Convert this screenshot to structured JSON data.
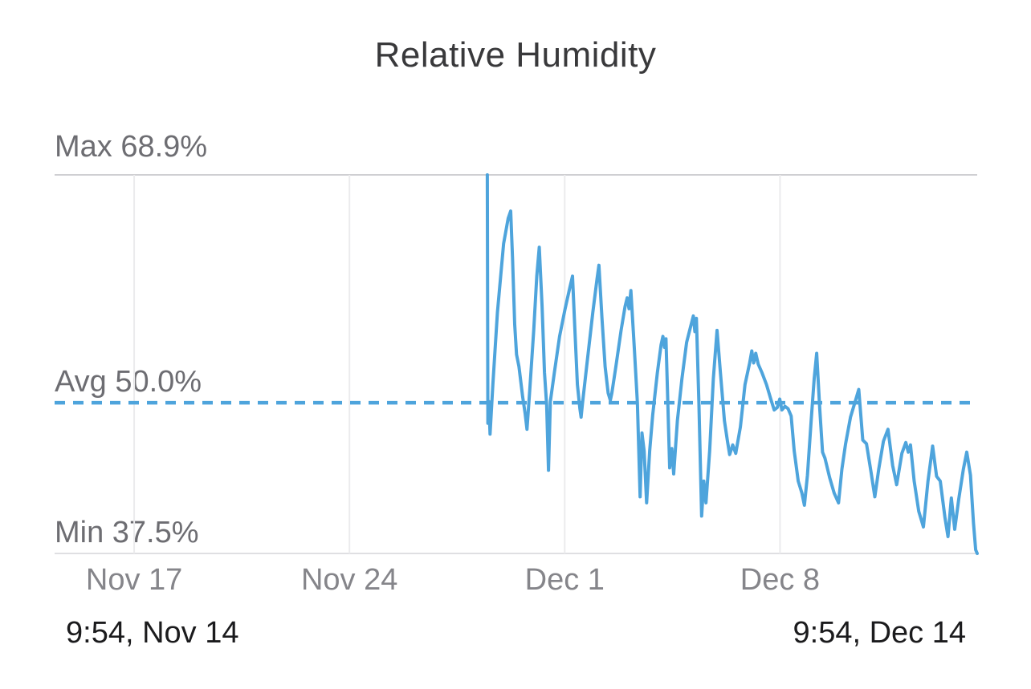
{
  "title": "Relative Humidity",
  "annotations": {
    "max_label": "Max 68.9%",
    "avg_label": "Avg 50.0%",
    "min_label": "Min 37.5%"
  },
  "footer": {
    "start": "9:54,  Nov 14",
    "end": "9:54,  Dec 14"
  },
  "colors": {
    "line": "#4ea4dc",
    "avg_dashed_line": "#4ea4dc",
    "grid_strong": "#cfcfd2",
    "grid_axis": "#dfdfe2",
    "grid_light": "#ebebed",
    "stat_label_gray": "#6d6d72",
    "tick_gray": "#85858a",
    "timestamp_dark": "#1b1b1d",
    "title_dark": "#39393b",
    "background": "#ffffff"
  },
  "chart_data": {
    "type": "line",
    "title": "Relative Humidity",
    "series_name": "Relative humidity (%)",
    "legend": "none",
    "grid": "weekly vertical gridlines; horizontal lines at max and min",
    "y_stats": {
      "max": 68.9,
      "avg": 50.0,
      "min": 37.5
    },
    "ylim": [
      37.5,
      68.9
    ],
    "x_unit": "days since Nov 14 09:54",
    "xlim": [
      0,
      30
    ],
    "x_start_label": "9:54,  Nov 14",
    "x_end_label": "9:54,  Dec 14",
    "x_gridlines": [
      {
        "day": 2.588,
        "label": "Nov 17"
      },
      {
        "day": 9.588,
        "label": "Nov 24"
      },
      {
        "day": 16.588,
        "label": "Dec 1"
      },
      {
        "day": 23.588,
        "label": "Dec 8"
      }
    ],
    "data_start_day": 14.07,
    "points": [
      [
        14.07,
        68.9
      ],
      [
        14.09,
        48.3
      ],
      [
        14.12,
        50.1
      ],
      [
        14.16,
        47.4
      ],
      [
        14.25,
        51.5
      ],
      [
        14.4,
        57.5
      ],
      [
        14.6,
        63.2
      ],
      [
        14.75,
        65.3
      ],
      [
        14.83,
        65.9
      ],
      [
        14.89,
        62.0
      ],
      [
        14.96,
        56.5
      ],
      [
        15.02,
        54.0
      ],
      [
        15.1,
        53.0
      ],
      [
        15.22,
        50.5
      ],
      [
        15.3,
        49.1
      ],
      [
        15.36,
        47.8
      ],
      [
        15.45,
        51.0
      ],
      [
        15.58,
        56.0
      ],
      [
        15.68,
        60.5
      ],
      [
        15.76,
        62.9
      ],
      [
        15.85,
        58.0
      ],
      [
        15.93,
        52.5
      ],
      [
        16.0,
        49.8
      ],
      [
        16.06,
        44.4
      ],
      [
        16.12,
        50.1
      ],
      [
        16.25,
        52.5
      ],
      [
        16.42,
        55.5
      ],
      [
        16.6,
        57.8
      ],
      [
        16.75,
        59.5
      ],
      [
        16.84,
        60.5
      ],
      [
        16.92,
        56.0
      ],
      [
        17.0,
        51.5
      ],
      [
        17.08,
        49.5
      ],
      [
        17.12,
        48.8
      ],
      [
        17.16,
        49.8
      ],
      [
        17.3,
        53.0
      ],
      [
        17.5,
        57.5
      ],
      [
        17.64,
        60.3
      ],
      [
        17.7,
        61.4
      ],
      [
        17.8,
        57.0
      ],
      [
        17.9,
        53.0
      ],
      [
        18.0,
        50.8
      ],
      [
        18.07,
        50.2
      ],
      [
        18.12,
        50.8
      ],
      [
        18.25,
        53.0
      ],
      [
        18.42,
        56.0
      ],
      [
        18.55,
        58.0
      ],
      [
        18.62,
        58.7
      ],
      [
        18.68,
        57.8
      ],
      [
        18.74,
        59.3
      ],
      [
        18.85,
        54.5
      ],
      [
        18.95,
        50.0
      ],
      [
        19.04,
        42.2
      ],
      [
        19.1,
        47.5
      ],
      [
        19.17,
        46.0
      ],
      [
        19.25,
        41.7
      ],
      [
        19.35,
        46.0
      ],
      [
        19.45,
        49.0
      ],
      [
        19.6,
        52.5
      ],
      [
        19.72,
        54.8
      ],
      [
        19.78,
        55.5
      ],
      [
        19.83,
        54.6
      ],
      [
        19.88,
        55.3
      ],
      [
        19.94,
        50.0
      ],
      [
        20.0,
        44.6
      ],
      [
        20.07,
        46.2
      ],
      [
        20.13,
        44.1
      ],
      [
        20.25,
        48.5
      ],
      [
        20.4,
        52.0
      ],
      [
        20.55,
        55.0
      ],
      [
        20.7,
        56.5
      ],
      [
        20.77,
        57.2
      ],
      [
        20.82,
        55.9
      ],
      [
        20.87,
        57.0
      ],
      [
        20.95,
        50.0
      ],
      [
        21.04,
        40.6
      ],
      [
        21.11,
        43.5
      ],
      [
        21.18,
        41.7
      ],
      [
        21.3,
        46.0
      ],
      [
        21.42,
        52.0
      ],
      [
        21.54,
        56.0
      ],
      [
        21.65,
        52.5
      ],
      [
        21.78,
        48.5
      ],
      [
        21.88,
        46.8
      ],
      [
        21.95,
        45.7
      ],
      [
        22.05,
        46.5
      ],
      [
        22.15,
        45.8
      ],
      [
        22.3,
        48.0
      ],
      [
        22.45,
        51.5
      ],
      [
        22.6,
        53.3
      ],
      [
        22.67,
        54.3
      ],
      [
        22.73,
        53.3
      ],
      [
        22.8,
        54.1
      ],
      [
        22.88,
        53.2
      ],
      [
        23.0,
        52.5
      ],
      [
        23.15,
        51.5
      ],
      [
        23.3,
        50.2
      ],
      [
        23.4,
        49.4
      ],
      [
        23.5,
        49.6
      ],
      [
        23.58,
        50.3
      ],
      [
        23.65,
        49.4
      ],
      [
        23.75,
        49.7
      ],
      [
        23.85,
        49.5
      ],
      [
        23.95,
        48.9
      ],
      [
        24.05,
        46.0
      ],
      [
        24.18,
        43.5
      ],
      [
        24.3,
        42.5
      ],
      [
        24.38,
        41.5
      ],
      [
        24.48,
        44.0
      ],
      [
        24.6,
        48.5
      ],
      [
        24.7,
        52.0
      ],
      [
        24.78,
        54.1
      ],
      [
        24.88,
        49.5
      ],
      [
        24.97,
        45.9
      ],
      [
        25.05,
        45.4
      ],
      [
        25.2,
        43.8
      ],
      [
        25.35,
        42.5
      ],
      [
        25.49,
        41.7
      ],
      [
        25.6,
        44.5
      ],
      [
        25.72,
        46.6
      ],
      [
        25.88,
        48.8
      ],
      [
        26.02,
        50.0
      ],
      [
        26.15,
        51.1
      ],
      [
        26.28,
        46.9
      ],
      [
        26.4,
        46.6
      ],
      [
        26.55,
        44.2
      ],
      [
        26.67,
        42.2
      ],
      [
        26.8,
        44.5
      ],
      [
        26.95,
        46.8
      ],
      [
        27.1,
        47.8
      ],
      [
        27.25,
        44.8
      ],
      [
        27.38,
        43.2
      ],
      [
        27.55,
        45.8
      ],
      [
        27.68,
        46.7
      ],
      [
        27.76,
        45.9
      ],
      [
        27.83,
        46.5
      ],
      [
        27.95,
        43.5
      ],
      [
        28.1,
        41.0
      ],
      [
        28.25,
        39.7
      ],
      [
        28.4,
        43.5
      ],
      [
        28.55,
        46.4
      ],
      [
        28.68,
        43.9
      ],
      [
        28.8,
        43.5
      ],
      [
        28.95,
        40.5
      ],
      [
        29.05,
        38.9
      ],
      [
        29.16,
        42.1
      ],
      [
        29.27,
        39.5
      ],
      [
        29.4,
        42.0
      ],
      [
        29.55,
        44.5
      ],
      [
        29.66,
        45.9
      ],
      [
        29.78,
        44.0
      ],
      [
        29.88,
        40.0
      ],
      [
        29.95,
        37.8
      ],
      [
        30.0,
        37.5
      ]
    ]
  }
}
